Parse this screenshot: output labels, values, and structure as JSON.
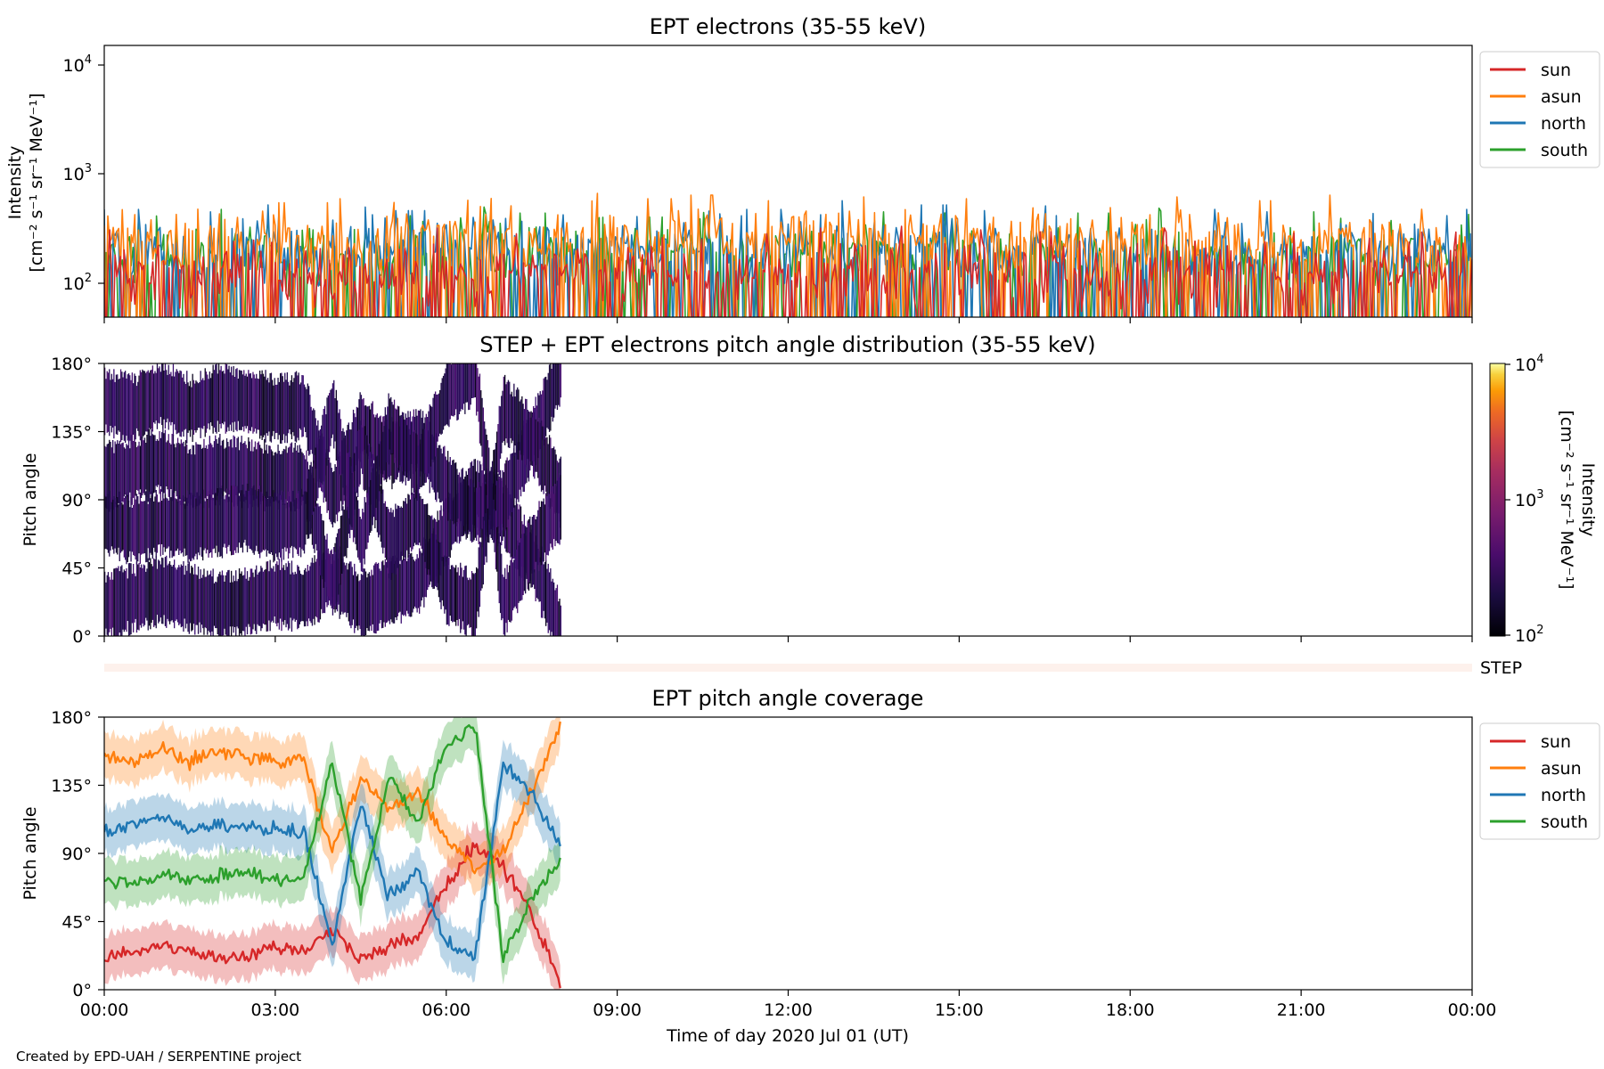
{
  "figure": {
    "credit": "Created by EPD-UAH / SERPENTINE project",
    "xlabel": "Time of day 2020 Jul 01 (UT)",
    "time_ticks": [
      "00:00",
      "03:00",
      "06:00",
      "09:00",
      "12:00",
      "15:00",
      "18:00",
      "21:00",
      "00:00"
    ]
  },
  "colors": {
    "sun": "#d62728",
    "asun": "#ff7f0e",
    "north": "#1f77b4",
    "south": "#2ca02c"
  },
  "panel1": {
    "title": "EPT electrons (35-55 keV)",
    "ylabel_line1": "Intensity",
    "ylabel_line2": "[cm⁻² s⁻¹ sr⁻¹ MeV⁻¹]",
    "y_ticks": [
      {
        "base": "10",
        "exp": "2"
      },
      {
        "base": "10",
        "exp": "3"
      },
      {
        "base": "10",
        "exp": "4"
      }
    ],
    "legend": [
      "sun",
      "asun",
      "north",
      "south"
    ]
  },
  "panel2": {
    "title": "STEP + EPT electrons pitch angle distribution (35-55 keV)",
    "ylabel": "Pitch angle",
    "y_ticks": [
      "0°",
      "45°",
      "90°",
      "135°",
      "180°"
    ],
    "colorbar_label_line1": "Intensity",
    "colorbar_label_line2": "[cm⁻² s⁻¹ sr⁻¹ MeV⁻¹]",
    "colorbar_ticks": [
      {
        "base": "10",
        "exp": "2"
      },
      {
        "base": "10",
        "exp": "3"
      },
      {
        "base": "10",
        "exp": "4"
      }
    ]
  },
  "step_strip": {
    "label": "STEP"
  },
  "panel3": {
    "title": "EPT pitch angle coverage",
    "ylabel": "Pitch angle",
    "y_ticks": [
      "0°",
      "45°",
      "90°",
      "135°",
      "180°"
    ],
    "legend": [
      "sun",
      "asun",
      "north",
      "south"
    ]
  },
  "chart_data": [
    {
      "type": "line",
      "title": "EPT electrons (35-55 keV)",
      "xlabel": "",
      "ylabel": "Intensity [cm⁻² s⁻¹ sr⁻¹ MeV⁻¹]",
      "y_scale": "log",
      "ylim": [
        50,
        15000
      ],
      "xlim": [
        "2020-07-01 00:00",
        "2020-07-02 00:00"
      ],
      "legend_position": "outside-right",
      "note_values_sampled_every": "1 hour",
      "x": [
        "00:00",
        "01:00",
        "02:00",
        "03:00",
        "04:00",
        "05:00",
        "06:00",
        "07:00",
        "08:00",
        "09:00",
        "10:00",
        "11:00",
        "12:00",
        "13:00",
        "14:00",
        "15:00",
        "16:00",
        "17:00",
        "18:00",
        "19:00",
        "20:00",
        "21:00",
        "22:00",
        "23:00"
      ],
      "series": [
        {
          "name": "sun",
          "values": [
            130,
            120,
            140,
            110,
            125,
            135,
            115,
            140,
            120,
            130,
            125,
            120,
            135,
            140,
            118,
            130,
            125,
            120,
            135,
            128,
            122,
            130,
            126,
            124
          ]
        },
        {
          "name": "asun",
          "values": [
            260,
            240,
            280,
            230,
            250,
            270,
            300,
            260,
            280,
            250,
            270,
            240,
            300,
            260,
            290,
            250,
            270,
            260,
            280,
            250,
            240,
            270,
            260,
            250
          ]
        },
        {
          "name": "north",
          "values": [
            200,
            190,
            220,
            180,
            210,
            195,
            230,
            205,
            215,
            190,
            225,
            200,
            240,
            210,
            220,
            195,
            215,
            205,
            225,
            200,
            190,
            210,
            205,
            200
          ]
        },
        {
          "name": "south",
          "values": [
            180,
            170,
            200,
            165,
            190,
            175,
            210,
            185,
            195,
            170,
            205,
            180,
            215,
            190,
            200,
            175,
            195,
            185,
            205,
            180,
            170,
            190,
            185,
            180
          ]
        }
      ]
    },
    {
      "type": "heatmap",
      "title": "STEP + EPT electrons pitch angle distribution (35-55 keV)",
      "ylabel": "Pitch angle",
      "ylim": [
        0,
        180
      ],
      "xlim": [
        "2020-07-01 00:00",
        "2020-07-02 00:00"
      ],
      "colorbar": {
        "label": "Intensity [cm⁻² s⁻¹ sr⁻¹ MeV⁻¹]",
        "scale": "log",
        "range": [
          100,
          10000
        ],
        "colormap": "inferno"
      },
      "data_coverage": [
        "2020-07-01 00:00",
        "2020-07-01 08:00"
      ],
      "cell_intensity_typical": 150
    },
    {
      "type": "line",
      "title": "EPT pitch angle coverage",
      "xlabel": "Time of day 2020 Jul 01 (UT)",
      "ylabel": "Pitch angle",
      "ylim": [
        0,
        180
      ],
      "xlim": [
        "2020-07-01 00:00",
        "2020-07-02 00:00"
      ],
      "legend_position": "outside-right",
      "shaded_band": "about ±15° around each line",
      "x": [
        "00:00",
        "00:30",
        "01:00",
        "01:30",
        "02:00",
        "02:30",
        "03:00",
        "03:30",
        "04:00",
        "04:30",
        "05:00",
        "05:30",
        "06:00",
        "06:30",
        "07:00",
        "07:30",
        "08:00"
      ],
      "series": [
        {
          "name": "sun",
          "values": [
            20,
            25,
            30,
            25,
            20,
            22,
            28,
            25,
            40,
            20,
            30,
            35,
            70,
            95,
            80,
            50,
            5
          ]
        },
        {
          "name": "asun",
          "values": [
            155,
            150,
            160,
            150,
            158,
            155,
            150,
            152,
            90,
            140,
            120,
            130,
            100,
            80,
            90,
            130,
            175
          ]
        },
        {
          "name": "north",
          "values": [
            105,
            110,
            115,
            105,
            110,
            108,
            105,
            105,
            30,
            125,
            60,
            80,
            30,
            20,
            150,
            130,
            95
          ]
        },
        {
          "name": "south",
          "values": [
            75,
            70,
            75,
            72,
            75,
            78,
            72,
            75,
            150,
            60,
            140,
            110,
            160,
            175,
            20,
            60,
            85
          ]
        }
      ]
    }
  ]
}
